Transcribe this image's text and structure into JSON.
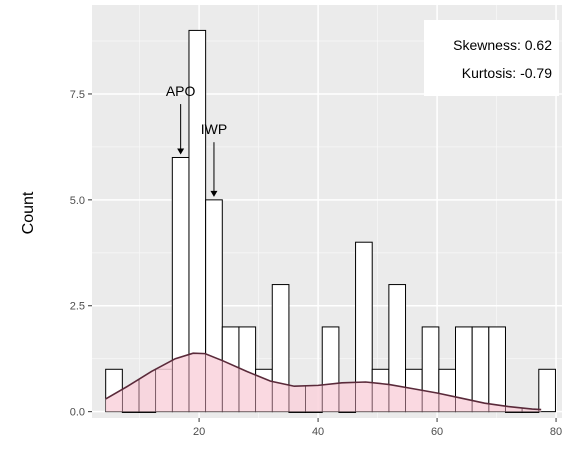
{
  "chart_data": {
    "type": "bar",
    "subtype": "histogram-with-density",
    "xlabel": "",
    "ylabel": "Count",
    "xlim": [
      2,
      81
    ],
    "ylim": [
      -0.15,
      9.6
    ],
    "x_ticks": [
      20,
      40,
      60,
      80
    ],
    "y_ticks": [
      0.0,
      2.5,
      5.0,
      7.5
    ],
    "y_tick_labels": [
      "0.0",
      "2.5",
      "5.0",
      "7.5"
    ],
    "grid": true,
    "panel_color": "#ebebeb",
    "bar_fill": "#ffffff",
    "bar_stroke": "#000000",
    "density_fill": "#f9d2dc",
    "density_line": "#5a2a3a",
    "bins": [
      {
        "x0": 4.3,
        "x1": 7.1,
        "count": 1
      },
      {
        "x0": 7.1,
        "x1": 9.9,
        "count": 0
      },
      {
        "x0": 9.9,
        "x1": 12.7,
        "count": 0
      },
      {
        "x0": 12.7,
        "x1": 15.5,
        "count": 1
      },
      {
        "x0": 15.5,
        "x1": 18.3,
        "count": 6
      },
      {
        "x0": 18.3,
        "x1": 21.1,
        "count": 9
      },
      {
        "x0": 21.1,
        "x1": 23.9,
        "count": 5
      },
      {
        "x0": 23.9,
        "x1": 26.7,
        "count": 2
      },
      {
        "x0": 26.7,
        "x1": 29.5,
        "count": 2
      },
      {
        "x0": 29.5,
        "x1": 32.3,
        "count": 1
      },
      {
        "x0": 32.3,
        "x1": 35.1,
        "count": 3
      },
      {
        "x0": 35.1,
        "x1": 37.9,
        "count": 0
      },
      {
        "x0": 37.9,
        "x1": 40.7,
        "count": 0
      },
      {
        "x0": 40.7,
        "x1": 43.5,
        "count": 2
      },
      {
        "x0": 43.5,
        "x1": 46.3,
        "count": 0
      },
      {
        "x0": 46.3,
        "x1": 49.1,
        "count": 4
      },
      {
        "x0": 49.1,
        "x1": 51.9,
        "count": 1
      },
      {
        "x0": 51.9,
        "x1": 54.7,
        "count": 3
      },
      {
        "x0": 54.7,
        "x1": 57.5,
        "count": 1
      },
      {
        "x0": 57.5,
        "x1": 60.3,
        "count": 2
      },
      {
        "x0": 60.3,
        "x1": 63.1,
        "count": 1
      },
      {
        "x0": 63.1,
        "x1": 65.9,
        "count": 2
      },
      {
        "x0": 65.9,
        "x1": 68.7,
        "count": 2
      },
      {
        "x0": 68.7,
        "x1": 71.5,
        "count": 2
      },
      {
        "x0": 71.5,
        "x1": 74.3,
        "count": 0
      },
      {
        "x0": 74.3,
        "x1": 77.1,
        "count": 0
      },
      {
        "x0": 77.1,
        "x1": 79.9,
        "count": 1
      }
    ],
    "density_curve": {
      "x": [
        4.3,
        8,
        12,
        16,
        19,
        21,
        24,
        28,
        32,
        36,
        40,
        44,
        48,
        52,
        56,
        60,
        64,
        68,
        72,
        76,
        77.5
      ],
      "y": [
        0.3,
        0.6,
        0.95,
        1.25,
        1.38,
        1.37,
        1.2,
        0.95,
        0.72,
        0.6,
        0.62,
        0.68,
        0.7,
        0.64,
        0.54,
        0.44,
        0.32,
        0.2,
        0.12,
        0.06,
        0.05
      ]
    },
    "annotations": [
      {
        "label": "APO",
        "x": 16.9,
        "arrow_tip_y": 6.0,
        "text_y": 7.45
      },
      {
        "label": "IWP",
        "x": 22.5,
        "arrow_tip_y": 5.0,
        "text_y": 6.55
      }
    ],
    "stats": {
      "skewness_label": "Skewness: 0.62",
      "kurtosis_label": "Kurtosis: -0.79"
    }
  }
}
